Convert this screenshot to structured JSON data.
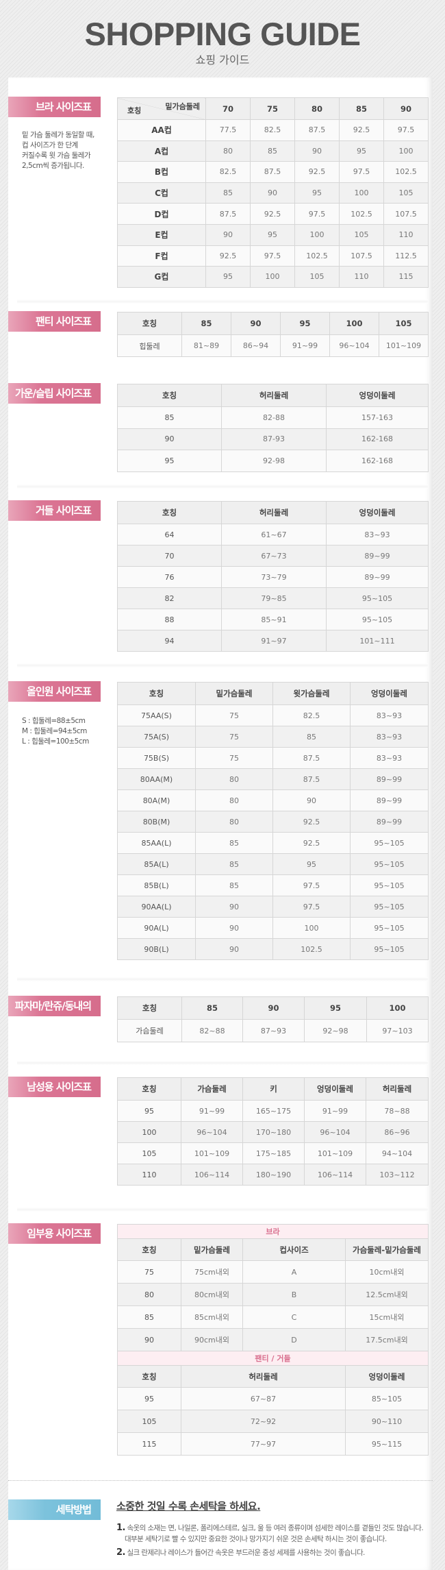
{
  "header": {
    "title": "SHOPPING GUIDE",
    "subtitle": "쇼핑 가이드"
  },
  "colors": {
    "label_pink": "#d66d8c",
    "label_blue": "#72bcd8",
    "header_bg": "#efefef",
    "caption_bg": "#fdeef2"
  },
  "sections": [
    {
      "title": "브라 사이즈표",
      "note_lines": [
        "밑 가슴 둘레가 동일할 때,",
        "컵 사이즈가 한 단계",
        "커질수록 윗 가슴 둘레가",
        "2,5cm씩 증가됩니다."
      ],
      "table": {
        "corner_top": "밑가슴둘레",
        "corner_bottom": "호칭",
        "header": [
          "70",
          "75",
          "80",
          "85",
          "90"
        ],
        "rows": [
          [
            "AA컵",
            "77.5",
            "82.5",
            "87.5",
            "92.5",
            "97.5"
          ],
          [
            "A컵",
            "80",
            "85",
            "90",
            "95",
            "100"
          ],
          [
            "B컵",
            "82.5",
            "87.5",
            "92.5",
            "97.5",
            "102.5"
          ],
          [
            "C컵",
            "85",
            "90",
            "95",
            "100",
            "105"
          ],
          [
            "D컵",
            "87.5",
            "92.5",
            "97.5",
            "102.5",
            "107.5"
          ],
          [
            "E컵",
            "90",
            "95",
            "100",
            "105",
            "110"
          ],
          [
            "F컵",
            "92.5",
            "97.5",
            "102.5",
            "107.5",
            "112.5"
          ],
          [
            "G컵",
            "95",
            "100",
            "105",
            "110",
            "115"
          ]
        ]
      }
    },
    {
      "title": "팬티 사이즈표",
      "table": {
        "header": [
          "호칭",
          "85",
          "90",
          "95",
          "100",
          "105"
        ],
        "rows": [
          [
            "힙둘레",
            "81~89",
            "86~94",
            "91~99",
            "96~104",
            "101~109"
          ]
        ]
      }
    },
    {
      "title": "가운/슬립 사이즈표",
      "table": {
        "header": [
          "호칭",
          "허리둘레",
          "엉덩이둘레"
        ],
        "rows": [
          [
            "85",
            "82-88",
            "157-163"
          ],
          [
            "90",
            "87-93",
            "162-168"
          ],
          [
            "95",
            "92-98",
            "162-168"
          ]
        ]
      }
    },
    {
      "title": "거들 사이즈표",
      "table": {
        "header": [
          "호칭",
          "허리둘레",
          "엉덩이둘레"
        ],
        "rows": [
          [
            "64",
            "61~67",
            "83~93"
          ],
          [
            "70",
            "67~73",
            "89~99"
          ],
          [
            "76",
            "73~79",
            "89~99"
          ],
          [
            "82",
            "79~85",
            "95~105"
          ],
          [
            "88",
            "85~91",
            "95~105"
          ],
          [
            "94",
            "91~97",
            "101~111"
          ]
        ]
      }
    },
    {
      "title": "올인원 사이즈표",
      "note_lines": [
        "S : 힙둘레=88±5cm",
        "M : 힙둘레=94±5cm",
        "L : 힙둘레=100±5cm"
      ],
      "table": {
        "header": [
          "호칭",
          "밑가슴둘레",
          "윗가슴둘레",
          "엉덩이둘레"
        ],
        "rows": [
          [
            "75AA(S)",
            "75",
            "82.5",
            "83~93"
          ],
          [
            "75A(S)",
            "75",
            "85",
            "83~93"
          ],
          [
            "75B(S)",
            "75",
            "87.5",
            "83~93"
          ],
          [
            "80AA(M)",
            "80",
            "87.5",
            "89~99"
          ],
          [
            "80A(M)",
            "80",
            "90",
            "89~99"
          ],
          [
            "80B(M)",
            "80",
            "92.5",
            "89~99"
          ],
          [
            "85AA(L)",
            "85",
            "92.5",
            "95~105"
          ],
          [
            "85A(L)",
            "85",
            "95",
            "95~105"
          ],
          [
            "85B(L)",
            "85",
            "97.5",
            "95~105"
          ],
          [
            "90AA(L)",
            "90",
            "97.5",
            "95~105"
          ],
          [
            "90A(L)",
            "90",
            "100",
            "95~105"
          ],
          [
            "90B(L)",
            "90",
            "102.5",
            "95~105"
          ]
        ]
      }
    },
    {
      "title": "파자마/란쥬/동내의",
      "table": {
        "header": [
          "호칭",
          "85",
          "90",
          "95",
          "100"
        ],
        "rows": [
          [
            "가슴둘레",
            "82~88",
            "87~93",
            "92~98",
            "97~103"
          ]
        ]
      }
    },
    {
      "title": "남성용 사이즈표",
      "table": {
        "header": [
          "호칭",
          "가슴둘레",
          "키",
          "엉덩이둘레",
          "허리둘레"
        ],
        "rows": [
          [
            "95",
            "91~99",
            "165~175",
            "91~99",
            "78~88"
          ],
          [
            "100",
            "96~104",
            "170~180",
            "96~104",
            "86~96"
          ],
          [
            "105",
            "101~109",
            "175~185",
            "101~109",
            "94~104"
          ],
          [
            "110",
            "106~114",
            "180~190",
            "106~114",
            "103~112"
          ]
        ]
      }
    },
    {
      "title": "임부용 사이즈표",
      "groups": [
        {
          "caption": "브라",
          "header": [
            "호칭",
            "밑가슴둘레",
            "컵사이즈",
            "가슴둘레-밑가슴둘레"
          ],
          "rows": [
            [
              "75",
              "75cm내외",
              "A",
              "10cm내외"
            ],
            [
              "80",
              "80cm내외",
              "B",
              "12.5cm내외"
            ],
            [
              "85",
              "85cm내외",
              "C",
              "15cm내외"
            ],
            [
              "90",
              "90cm내외",
              "D",
              "17.5cm내외"
            ]
          ]
        },
        {
          "caption": "팬티 / 거들",
          "header": [
            "호칭",
            "허리둘레",
            "엉덩이둘레"
          ],
          "rows": [
            [
              "95",
              "67~87",
              "85~105"
            ],
            [
              "105",
              "72~92",
              "90~110"
            ],
            [
              "115",
              "77~97",
              "95~115"
            ]
          ]
        }
      ]
    }
  ],
  "washing": {
    "title": "세탁방법",
    "heading": "소중한 것일 수록 손세탁을 하세요.",
    "items": [
      {
        "num": "1.",
        "lines": [
          "속옷의 소재는 면, 나일론, 폴리에스테르, 실크, 울 등 여러 종류이며 섬세한 레이스를 곁들인 것도 많습니다.",
          "대부분 세탁기로 빨 수 있지만 중요한 것이나 망가지기 쉬운 것은 손세탁 하시는 것이 좋습니다."
        ]
      },
      {
        "num": "2.",
        "lines": [
          "실크 란제리나 레이스가 들어간 속옷은 부드러운 중성 세제를 사용하는 것이 좋습니다."
        ]
      }
    ]
  }
}
